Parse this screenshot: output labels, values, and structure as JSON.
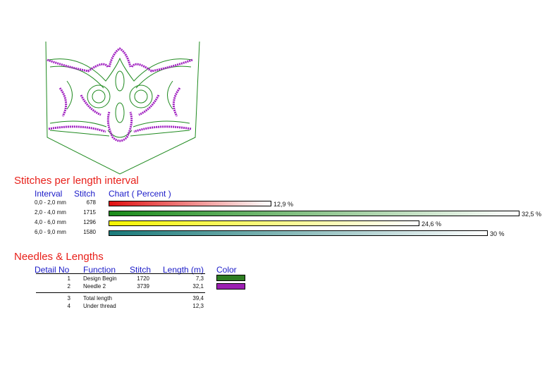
{
  "colors": {
    "section_title": "#e8201a",
    "header_text": "#1a1ac8",
    "outline_green": "#1f8a1f",
    "stitch_purple": "#a020c0"
  },
  "stitches_section": {
    "title": "Stitches per length interval",
    "headers": {
      "interval": "Interval",
      "stitch": "Stitch",
      "chart": "Chart ( Percent )"
    }
  },
  "needles_section": {
    "title": "Needles & Lengths",
    "headers": {
      "detail_no": "Detail No",
      "function": "Function",
      "stitch": "Stitch",
      "length": "Length (m)",
      "color": "Color"
    },
    "rows": [
      {
        "no": "1",
        "function": "Design Begin",
        "stitch": "1720",
        "length": "7,3",
        "color": "#2e7d22"
      },
      {
        "no": "2",
        "function": "Needle 2",
        "stitch": "3739",
        "length": "32,1",
        "color": "#9c1fb2"
      }
    ],
    "totals": [
      {
        "no": "3",
        "function": "Total length",
        "length": "39,4"
      },
      {
        "no": "4",
        "function": "Under thread",
        "length": "12,3"
      }
    ]
  },
  "chart_data": {
    "type": "bar",
    "orientation": "horizontal",
    "title": "Stitches per length interval",
    "xlabel": "Chart ( Percent )",
    "categories": [
      "0,0 - 2,0 mm",
      "2,0 - 4,0 mm",
      "4,0 - 6,0 mm",
      "6,0 - 9,0 mm"
    ],
    "stitches": [
      "678",
      "1715",
      "1296",
      "1580"
    ],
    "values": [
      12.9,
      32.5,
      24.6,
      30
    ],
    "value_labels": [
      "12,9 %",
      "32,5 %",
      "24,6 %",
      "30 %"
    ],
    "bar_colors": [
      "#e01010",
      "#1a8a1a",
      "#f5f500",
      "#1a7a7a"
    ],
    "xlim": [
      0,
      32.5
    ]
  }
}
